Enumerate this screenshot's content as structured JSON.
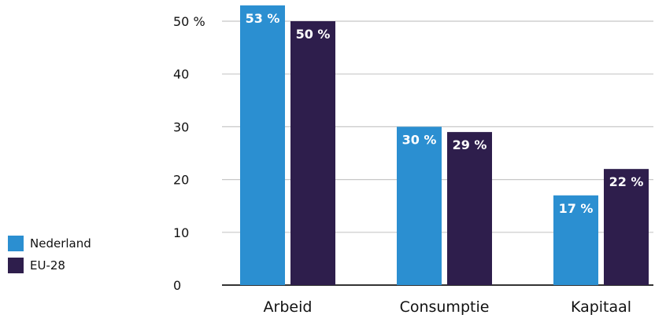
{
  "chart_data": {
    "type": "bar",
    "categories": [
      "Arbeid",
      "Consumptie",
      "Kapitaal"
    ],
    "series": [
      {
        "name": "Nederland",
        "values": [
          53,
          30,
          17
        ],
        "labels": [
          "53 %",
          "30 %",
          "17 %"
        ],
        "color": "#2b8fd1"
      },
      {
        "name": "EU-28",
        "values": [
          50,
          29,
          22
        ],
        "labels": [
          "50 %",
          "29 %",
          "22 %"
        ],
        "color": "#2e1e4c"
      }
    ],
    "yticks": [
      {
        "value": 0,
        "label": "0"
      },
      {
        "value": 10,
        "label": "10"
      },
      {
        "value": 20,
        "label": "20"
      },
      {
        "value": 30,
        "label": "30"
      },
      {
        "value": 40,
        "label": "40"
      },
      {
        "value": 50,
        "label": "50 %"
      }
    ],
    "ylim": [
      0,
      54
    ],
    "grid": true,
    "legend_position": "left-bottom",
    "title": "",
    "xlabel": "",
    "ylabel": ""
  }
}
